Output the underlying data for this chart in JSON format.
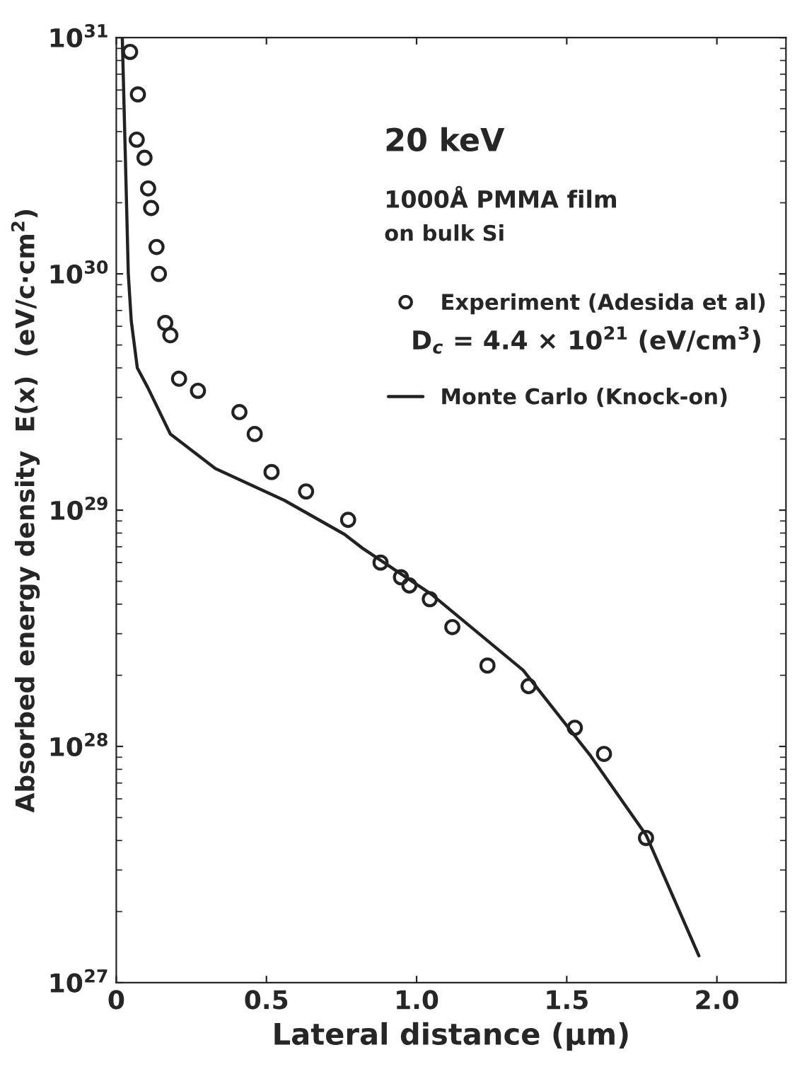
{
  "chart_data": {
    "type": "scatter",
    "xlabel": "Lateral distance (µm)",
    "ylabel": "Absorbed energy density  E(x)  (eV/c·cm$^{2}$)",
    "log": "y",
    "xlim": [
      0,
      2.23
    ],
    "ylim": [
      1e+27,
      1e+31
    ],
    "xticks": [
      {
        "value": 0,
        "label": "0"
      },
      0.5,
      {
        "value": 1.0,
        "label": "1.0"
      },
      1.5,
      {
        "value": 2.0,
        "label": "2.0"
      }
    ],
    "yticks": [
      {
        "value": 1e+27,
        "label": "10$^{27}$"
      },
      {
        "value": 1e+28,
        "label": "10$^{28}$"
      },
      {
        "value": 1e+29,
        "label": "10$^{29}$"
      },
      {
        "value": 1e+30,
        "label": "10$^{30}$"
      },
      {
        "value": 1e+31,
        "label": "10$^{31}$"
      }
    ],
    "grid": false,
    "legend": "top right",
    "annotations": [
      "20 keV",
      "1000Å PMMA film",
      "on bulk Si",
      "D$_{c}$ = 4.4 × 10$^{21}$ (eV/cm$^{3}$)"
    ],
    "series": [
      {
        "name": "Experiment (Adesida et al)",
        "marker": "circle",
        "color": "#222222",
        "x": [
          0.046,
          0.072,
          0.068,
          0.094,
          0.106,
          0.116,
          0.134,
          0.142,
          0.163,
          0.18,
          0.209,
          0.272,
          0.41,
          0.461,
          0.517,
          0.632,
          0.772,
          0.88,
          0.948,
          0.976,
          1.044,
          1.119,
          1.236,
          1.373,
          1.527,
          1.624,
          1.764
        ],
        "values": [
          8.7e+30,
          5.75e+30,
          3.7e+30,
          3.1e+30,
          2.3e+30,
          1.9e+30,
          1.3e+30,
          1e+30,
          6.2e+29,
          5.5e+29,
          3.6e+29,
          3.2e+29,
          2.6e+29,
          2.1e+29,
          1.45e+29,
          1.2e+29,
          9.1e+28,
          6e+28,
          5.2e+28,
          4.8e+28,
          4.2e+28,
          3.2e+28,
          2.2e+28,
          1.8e+28,
          1.2e+28,
          9.3e+27,
          4.1e+27
        ]
      },
      {
        "name": "Monte Carlo (Knock-on)",
        "type": "line",
        "marker": "none",
        "line_style": "solid",
        "color": "#222222",
        "x": [
          0.02,
          0.03,
          0.04,
          0.05,
          0.07,
          0.105,
          0.18,
          0.33,
          0.56,
          0.76,
          0.82,
          1.05,
          1.355,
          1.58,
          1.765,
          1.94
        ],
        "values": [
          1e+31,
          3.2e+30,
          1e+30,
          6.3e+29,
          4e+29,
          3.3e+29,
          2.1e+29,
          1.5e+29,
          1.1e+29,
          7.9e+28,
          6.9e+28,
          4.4e+28,
          2.1e+28,
          9.1e+27,
          4.2e+27,
          1.3e+27
        ]
      }
    ]
  }
}
